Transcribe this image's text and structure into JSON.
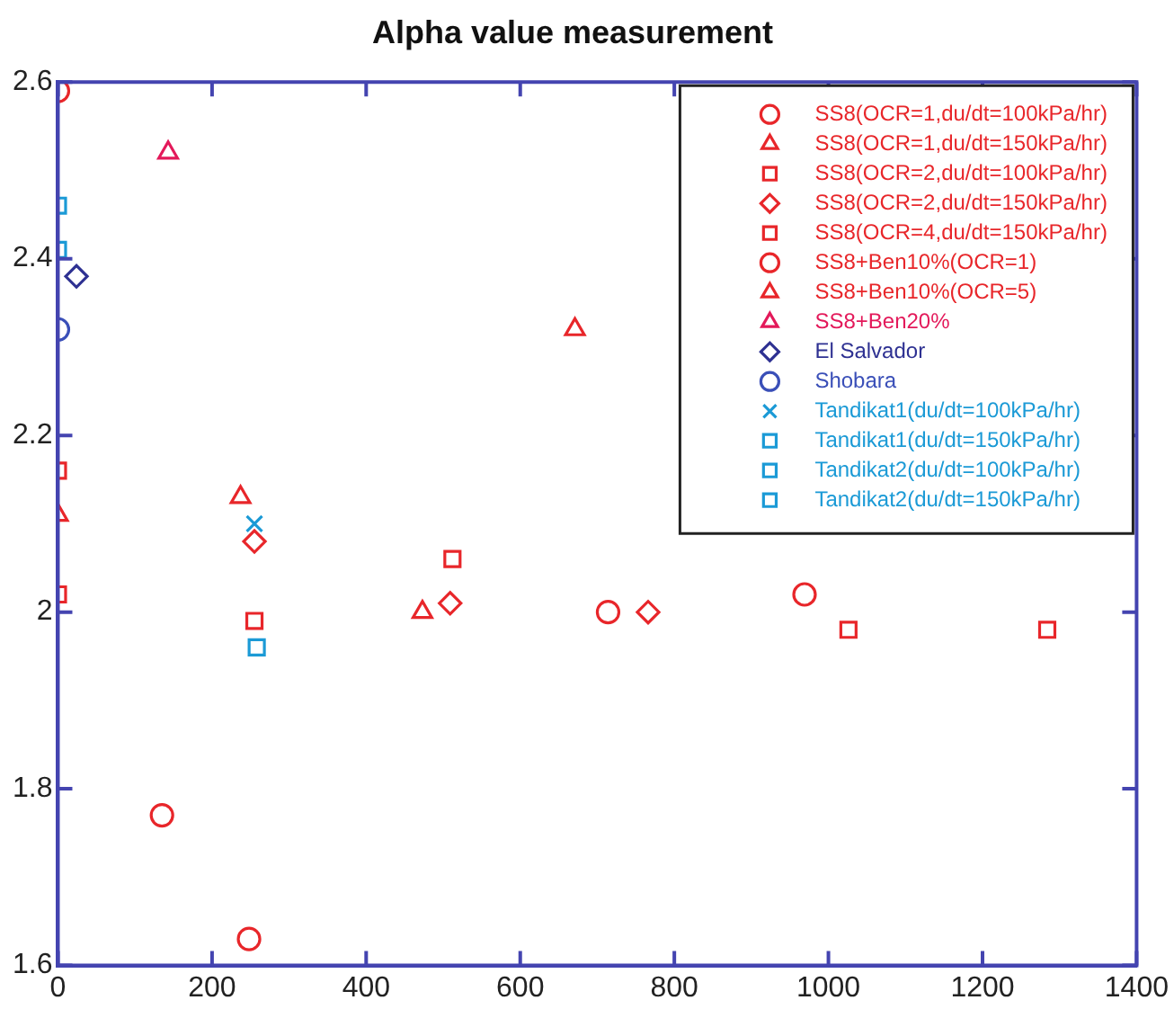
{
  "chart_data": {
    "type": "scatter",
    "title": "Alpha value measurement",
    "xlim": [
      0,
      1400
    ],
    "xticks": [
      0,
      200,
      400,
      600,
      800,
      1000,
      1200,
      1400
    ],
    "ylim": [
      1.6,
      2.6
    ],
    "yticks": [
      {
        "value": 1.6,
        "label": "1.6"
      },
      {
        "value": 1.8,
        "label": "1.8"
      },
      {
        "value": 2,
        "label": "2"
      },
      {
        "value": 2.2,
        "label": "2.2"
      },
      {
        "value": 2.4,
        "label": "2.4"
      },
      {
        "value": 2.6,
        "label": "2.6"
      }
    ],
    "grid": false,
    "legend": "top right",
    "series": [
      {
        "name": "SS8(OCR=1,du/dt=100kPa/hr)",
        "color": "#e8262a",
        "marker": "circle",
        "x": [
          714,
          969
        ],
        "values": [
          2.0,
          2.02
        ]
      },
      {
        "name": "SS8(OCR=1,du/dt=150kPa/hr)",
        "color": "#e8262a",
        "marker": "triangle",
        "x": [
          0,
          237,
          473
        ],
        "values": [
          2.11,
          2.13,
          2.0
        ]
      },
      {
        "name": "SS8(OCR=2,du/dt=100kPa/hr)",
        "color": "#e8262a",
        "marker": "square",
        "x": [
          0,
          1026,
          1284
        ],
        "values": [
          2.16,
          1.98,
          1.98
        ]
      },
      {
        "name": "SS8(OCR=2,du/dt=150kPa/hr)",
        "color": "#e8262a",
        "marker": "diamond",
        "x": [
          255,
          509,
          766
        ],
        "values": [
          2.08,
          2.01,
          2.0
        ]
      },
      {
        "name": "SS8(OCR=4,du/dt=150kPa/hr)",
        "color": "#e8262a",
        "marker": "square",
        "x": [
          0,
          255,
          512
        ],
        "values": [
          2.02,
          1.99,
          2.06
        ]
      },
      {
        "name": "SS8+Ben10%(OCR=1)",
        "color": "#e8262a",
        "marker": "circle",
        "x": [
          0,
          135,
          248
        ],
        "values": [
          2.59,
          1.77,
          1.63
        ]
      },
      {
        "name": "SS8+Ben10%(OCR=5)",
        "color": "#e8262a",
        "marker": "triangle",
        "x": [
          671
        ],
        "values": [
          2.32
        ]
      },
      {
        "name": "SS8+Ben20%",
        "color": "#e3195a",
        "marker": "triangle",
        "x": [
          143
        ],
        "values": [
          2.52
        ]
      },
      {
        "name": "El Salvador",
        "color": "#2e3192",
        "marker": "diamond",
        "x": [
          24
        ],
        "values": [
          2.38
        ]
      },
      {
        "name": "Shobara",
        "color": "#3a4fb8",
        "marker": "circle",
        "x": [
          0
        ],
        "values": [
          2.32
        ]
      },
      {
        "name": "Tandikat1(du/dt=100kPa/hr)",
        "color": "#1b9ad6",
        "marker": "cross",
        "x": [
          255
        ],
        "values": [
          2.1
        ]
      },
      {
        "name": "Tandikat1(du/dt=150kPa/hr)",
        "color": "#1b9ad6",
        "marker": "square",
        "x": [
          0
        ],
        "values": [
          2.41
        ]
      },
      {
        "name": "Tandikat2(du/dt=100kPa/hr)",
        "color": "#1b9ad6",
        "marker": "square",
        "x": [
          258
        ],
        "values": [
          1.96
        ]
      },
      {
        "name": "Tandikat2(du/dt=150kPa/hr)",
        "color": "#1b9ad6",
        "marker": "square",
        "x": [
          0
        ],
        "values": [
          2.46
        ]
      }
    ]
  }
}
